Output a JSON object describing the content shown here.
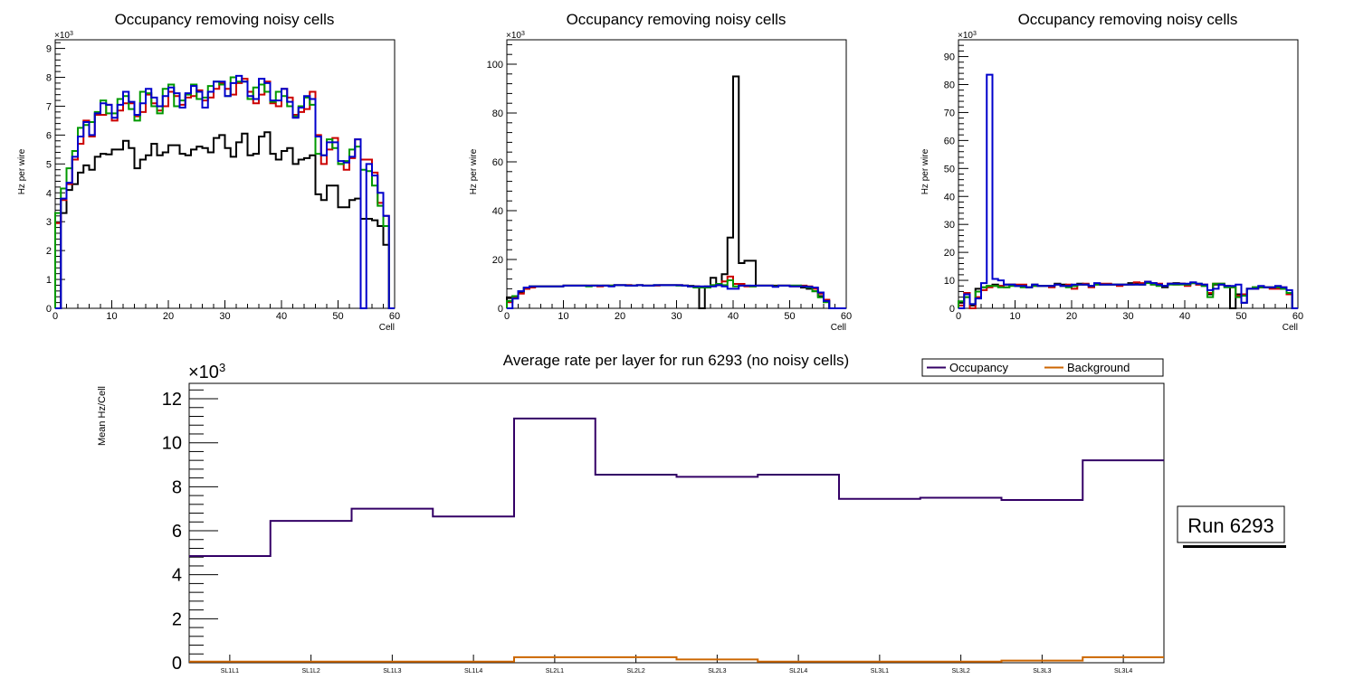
{
  "chart_data": [
    {
      "type": "histogram-step",
      "title": "Occupancy removing noisy cells",
      "xlabel": "Cell",
      "ylabel": "Hz per wire",
      "y_multiplier_label": "×10",
      "y_multiplier_exp": "3",
      "xlim": [
        0,
        60
      ],
      "ylim": [
        0,
        9.3
      ],
      "x_ticks": [
        0,
        10,
        20,
        30,
        40,
        50,
        60
      ],
      "y_ticks": [
        0,
        1,
        2,
        3,
        4,
        5,
        6,
        7,
        8,
        9
      ],
      "bin_width": 1,
      "series": [
        {
          "name": "black",
          "color": "#000000",
          "values": [
            0,
            3.3,
            4.1,
            4.3,
            4.7,
            4.95,
            4.8,
            5.25,
            5.35,
            5.33,
            5.5,
            5.5,
            5.8,
            5.55,
            4.85,
            5.15,
            5.3,
            5.7,
            5.3,
            5.4,
            5.65,
            5.65,
            5.35,
            5.3,
            5.5,
            5.6,
            5.55,
            5.4,
            5.9,
            6.0,
            5.55,
            5.25,
            5.75,
            6.05,
            5.3,
            5.35,
            5.95,
            6.1,
            5.35,
            5.15,
            5.45,
            5.55,
            5.0,
            5.15,
            5.2,
            5.3,
            3.95,
            3.75,
            4.25,
            4.25,
            3.5,
            3.5,
            3.75,
            3.8,
            3.1,
            3.1,
            3.05,
            2.85,
            2.2,
            0
          ]
        },
        {
          "name": "red",
          "color": "#cc0000",
          "values": [
            2.95,
            3.75,
            4.3,
            5.15,
            5.7,
            6.5,
            5.95,
            6.7,
            6.7,
            7.05,
            6.5,
            6.85,
            7.1,
            7.1,
            6.65,
            6.8,
            7.4,
            7.1,
            6.85,
            7.0,
            7.5,
            7.35,
            7.05,
            7.3,
            7.35,
            7.55,
            7.2,
            7.3,
            7.6,
            7.8,
            7.6,
            7.4,
            7.8,
            7.95,
            7.5,
            7.1,
            7.4,
            7.85,
            7.1,
            7.0,
            7.6,
            7.3,
            6.7,
            6.8,
            6.9,
            7.5,
            6.0,
            5.0,
            5.5,
            5.9,
            5.0,
            4.8,
            5.2,
            5.85,
            5.15,
            5.15,
            4.7,
            3.65,
            3.2,
            0
          ]
        },
        {
          "name": "green",
          "color": "#009900",
          "values": [
            3.3,
            4.15,
            4.85,
            5.45,
            6.25,
            6.35,
            6.45,
            6.8,
            7.2,
            6.75,
            6.75,
            7.25,
            7.35,
            6.9,
            6.5,
            7.5,
            7.45,
            7.0,
            6.75,
            7.6,
            7.75,
            7.0,
            7.2,
            7.4,
            7.75,
            7.25,
            7.3,
            7.7,
            7.85,
            7.75,
            7.35,
            8.0,
            7.85,
            7.85,
            7.25,
            7.65,
            7.75,
            7.5,
            7.15,
            7.5,
            7.35,
            7.0,
            6.65,
            7.0,
            7.3,
            7.05,
            5.35,
            5.3,
            5.85,
            5.55,
            5.0,
            5.1,
            5.5,
            5.6,
            4.8,
            4.75,
            4.25,
            3.55,
            2.85,
            0
          ]
        },
        {
          "name": "blue",
          "color": "#0000cc",
          "values": [
            0,
            3.8,
            4.35,
            5.25,
            5.95,
            6.45,
            6.0,
            6.75,
            7.1,
            7.05,
            6.6,
            7.05,
            7.5,
            7.15,
            6.7,
            7.1,
            7.6,
            7.3,
            7.0,
            7.35,
            7.65,
            7.45,
            6.95,
            7.45,
            7.7,
            7.5,
            6.95,
            7.5,
            7.85,
            7.85,
            7.35,
            7.8,
            8.05,
            7.85,
            7.35,
            7.25,
            7.95,
            7.8,
            7.2,
            7.2,
            7.6,
            7.15,
            6.6,
            6.95,
            7.35,
            7.25,
            5.95,
            5.3,
            5.75,
            5.75,
            5.1,
            5.05,
            5.25,
            5.85,
            0,
            5.0,
            4.6,
            4.0,
            3.2,
            0
          ]
        }
      ]
    },
    {
      "type": "histogram-step",
      "title": "Occupancy removing noisy cells",
      "xlabel": "Cell",
      "ylabel": "Hz per wire",
      "y_multiplier_label": "×10",
      "y_multiplier_exp": "3",
      "xlim": [
        0,
        60
      ],
      "ylim": [
        0,
        110
      ],
      "x_ticks": [
        0,
        10,
        20,
        30,
        40,
        50,
        60
      ],
      "y_ticks": [
        0,
        20,
        40,
        60,
        80,
        100
      ],
      "bin_width": 1,
      "series": [
        {
          "name": "black",
          "color": "#000000",
          "values": [
            4.5,
            5,
            6.5,
            8,
            9,
            9,
            9,
            9,
            9,
            9,
            9.3,
            9.3,
            9.3,
            9.3,
            9.3,
            9.3,
            9.3,
            9.3,
            9.3,
            9.5,
            9.5,
            9.5,
            9.3,
            9.5,
            9.3,
            9.3,
            9.5,
            9.5,
            9.5,
            9.5,
            9.5,
            9.3,
            9.2,
            9,
            0,
            9,
            12.5,
            9.5,
            14,
            29,
            95,
            18.5,
            19.5,
            19.5,
            9.3,
            9.3,
            9.3,
            9.3,
            9.3,
            9.3,
            9.3,
            9.3,
            8.5,
            8,
            7,
            5,
            3,
            0,
            0,
            0
          ]
        },
        {
          "name": "red",
          "color": "#cc0000",
          "values": [
            2.5,
            4.5,
            6,
            8,
            8.5,
            9,
            9,
            9,
            9,
            9,
            9.3,
            9.3,
            9.3,
            9.3,
            9.3,
            9.3,
            9,
            9.3,
            9.3,
            9.5,
            9.5,
            9.5,
            9.3,
            9.5,
            9.3,
            9.3,
            9.3,
            9.5,
            9.5,
            9.5,
            9.5,
            9.3,
            9,
            9,
            8.5,
            8.5,
            9.5,
            10,
            11,
            13,
            10,
            10,
            9,
            9,
            9.3,
            9.3,
            9.3,
            9,
            9.3,
            9.3,
            9,
            9,
            9.3,
            9,
            8,
            6,
            3.5,
            0,
            0,
            0
          ]
        },
        {
          "name": "green",
          "color": "#009900",
          "values": [
            3,
            5,
            7,
            8.5,
            9,
            9,
            9,
            9,
            9,
            9,
            9.3,
            9.3,
            9.3,
            9.3,
            9,
            9.3,
            9.3,
            9.3,
            9.3,
            9.5,
            9.5,
            9.3,
            9.3,
            9.5,
            9.3,
            9.3,
            9.5,
            9.5,
            9.5,
            9.5,
            9.3,
            9.3,
            9,
            8.5,
            8.5,
            8.5,
            9.5,
            10,
            9.5,
            11.5,
            9,
            9.3,
            9.3,
            9,
            9.3,
            9.3,
            9.3,
            9,
            9.3,
            9.3,
            9.3,
            9.3,
            9,
            8.5,
            7,
            4.5,
            2.5,
            0,
            0,
            0
          ]
        },
        {
          "name": "blue",
          "color": "#0000cc",
          "values": [
            0,
            4,
            7,
            8.5,
            9,
            9,
            9,
            9,
            9,
            9,
            9.3,
            9.3,
            9.3,
            9.3,
            9.3,
            9.3,
            9.3,
            9.3,
            9,
            9.5,
            9.5,
            9.3,
            9.3,
            9.5,
            9.3,
            9.3,
            9.5,
            9.5,
            9.5,
            9.5,
            9.5,
            9.3,
            9,
            9,
            9,
            9,
            9,
            9.5,
            9,
            8,
            8,
            9.3,
            9.3,
            9.3,
            9.3,
            9.3,
            9.3,
            8.8,
            9.3,
            9.3,
            9,
            9,
            9,
            8.8,
            8.5,
            6.5,
            3,
            0,
            0,
            0
          ]
        }
      ]
    },
    {
      "type": "histogram-step",
      "title": "Occupancy removing noisy cells",
      "xlabel": "Cell",
      "ylabel": "Hz per wire",
      "y_multiplier_label": "×10",
      "y_multiplier_exp": "3",
      "xlim": [
        0,
        60
      ],
      "ylim": [
        0,
        96
      ],
      "x_ticks": [
        0,
        10,
        20,
        30,
        40,
        50,
        60
      ],
      "y_ticks": [
        0,
        10,
        20,
        30,
        40,
        50,
        60,
        70,
        80,
        90
      ],
      "bin_width": 1,
      "series": [
        {
          "name": "black",
          "color": "#000000",
          "values": [
            2,
            4,
            1,
            7,
            7.5,
            8,
            8.5,
            8,
            8.5,
            8.5,
            8,
            8,
            7.5,
            8.5,
            8,
            8,
            8,
            8.8,
            8.5,
            8,
            8,
            8.8,
            8.5,
            8,
            8.8,
            8.5,
            8.5,
            8.5,
            8.5,
            8.5,
            9,
            9,
            8.5,
            9.5,
            9,
            8.5,
            7.5,
            8.8,
            9,
            8.8,
            8.5,
            9,
            8.5,
            8,
            5,
            8.5,
            8.5,
            8,
            0,
            5,
            2,
            7,
            7.5,
            7.5,
            7.5,
            7.5,
            7.5,
            7,
            5,
            0
          ]
        },
        {
          "name": "red",
          "color": "#cc0000",
          "values": [
            1,
            5.5,
            0,
            4,
            6.5,
            7.5,
            8,
            8,
            7.5,
            8.5,
            8.5,
            8.5,
            7.5,
            8,
            8,
            8,
            7.5,
            8.5,
            8,
            8.5,
            7,
            8.5,
            8.8,
            7.5,
            8.5,
            8.8,
            8.8,
            8.5,
            8,
            8.5,
            8.5,
            9.3,
            9,
            9.5,
            8.5,
            8.8,
            8,
            8.8,
            8.5,
            8.8,
            8,
            9,
            8.5,
            8.5,
            5.5,
            8.8,
            8.8,
            8,
            7.5,
            4.5,
            5,
            7,
            7,
            7.5,
            7.5,
            7,
            7,
            7.5,
            5,
            0
          ]
        },
        {
          "name": "green",
          "color": "#009900",
          "values": [
            2.5,
            4,
            1.5,
            6,
            7.5,
            8,
            8,
            7.5,
            7.5,
            8,
            8,
            7.5,
            7.5,
            8,
            8,
            8,
            8,
            8.5,
            8,
            7.5,
            8,
            8.5,
            8.5,
            8,
            8.5,
            8.5,
            8.5,
            8.5,
            8.5,
            8.5,
            8.5,
            8.5,
            8.5,
            9,
            8.5,
            8,
            8,
            8.5,
            8.5,
            8.5,
            8.5,
            9,
            8.8,
            8,
            4,
            8.8,
            8.8,
            7.5,
            7.5,
            4,
            4.5,
            7,
            7.5,
            7.5,
            7.5,
            7.5,
            7.5,
            7,
            5.5,
            0
          ]
        },
        {
          "name": "blue",
          "color": "#0000cc",
          "values": [
            0,
            5,
            1.5,
            3.5,
            9,
            83.5,
            10.5,
            10,
            8.5,
            8.5,
            8,
            8,
            7.5,
            8.5,
            8,
            8,
            8,
            8.5,
            8,
            8,
            8.5,
            8.5,
            8.5,
            8,
            9,
            8.5,
            8.5,
            8.5,
            8.5,
            8.5,
            8.5,
            8.5,
            8.5,
            9.5,
            9,
            8.5,
            8,
            8.8,
            8.8,
            8.8,
            8.8,
            9.3,
            8.8,
            8.5,
            6.5,
            7,
            8.5,
            8,
            8,
            8.5,
            2,
            7,
            7,
            8,
            7.5,
            7.5,
            8,
            7.5,
            6.5,
            0
          ]
        }
      ]
    },
    {
      "type": "histogram-step",
      "title": "Average rate per layer for run 6293 (no noisy cells)",
      "xlabel": "",
      "ylabel": "Mean Hz/Cell",
      "y_multiplier_label": "×10",
      "y_multiplier_exp": "3",
      "categories": [
        "SL1L1",
        "SL1L2",
        "SL1L3",
        "SL1L4",
        "SL2L1",
        "SL2L2",
        "SL2L3",
        "SL2L4",
        "SL3L1",
        "SL3L2",
        "SL3L3",
        "SL3L4"
      ],
      "ylim": [
        0,
        12.7
      ],
      "y_ticks": [
        0,
        2,
        4,
        6,
        8,
        10,
        12
      ],
      "legend": {
        "position": "top-right",
        "entries": [
          "Occupancy",
          "Background"
        ]
      },
      "series": [
        {
          "name": "Occupancy",
          "color": "#330066",
          "values": [
            4.85,
            6.45,
            7.0,
            6.65,
            11.1,
            8.55,
            8.45,
            8.55,
            7.45,
            7.5,
            7.4,
            9.2
          ]
        },
        {
          "name": "Background",
          "color": "#cc6600",
          "values": [
            0.05,
            0.05,
            0.05,
            0.05,
            0.25,
            0.25,
            0.15,
            0.05,
            0.05,
            0.05,
            0.1,
            0.25
          ]
        }
      ]
    }
  ],
  "annotation": {
    "run_label": "Run 6293"
  }
}
